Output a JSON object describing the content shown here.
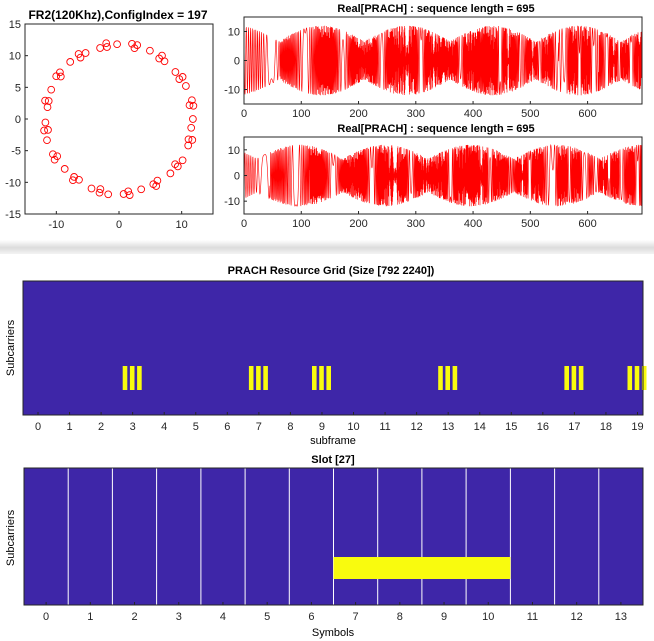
{
  "chart_data": [
    {
      "id": "constellation",
      "type": "scatter",
      "title": "FR2(120Khz),ConfigIndex = 197",
      "xlabel": "",
      "ylabel": "",
      "xlim": [
        -15,
        15
      ],
      "ylim": [
        -15,
        15
      ],
      "xticks": [
        "-10",
        "0",
        "10"
      ],
      "yticks": [
        "15",
        "10",
        "5",
        "0",
        "-5",
        "-10",
        "-15"
      ],
      "marker": "circle",
      "color": "#ff0000",
      "radius": 11.8,
      "num_points": 60
    },
    {
      "id": "real-prach-1",
      "type": "line",
      "title": "Real[PRACH] : sequence length = 695",
      "xlim": [
        0,
        695
      ],
      "ylim": [
        -15,
        15
      ],
      "xticks": [
        "0",
        "100",
        "200",
        "300",
        "400",
        "500",
        "600"
      ],
      "yticks": [
        "10",
        "0",
        "-10"
      ],
      "color": "#ff0000",
      "amplitude": 12
    },
    {
      "id": "real-prach-2",
      "type": "line",
      "title": "Real[PRACH] : sequence length = 695",
      "xlim": [
        0,
        695
      ],
      "ylim": [
        -15,
        15
      ],
      "xticks": [
        "0",
        "100",
        "200",
        "300",
        "400",
        "500",
        "600"
      ],
      "yticks": [
        "10",
        "0",
        "-10"
      ],
      "color": "#ff0000",
      "amplitude": 12
    },
    {
      "id": "resource-grid",
      "type": "heatmap",
      "title": "PRACH Resource Grid (Size [792 2240])",
      "xlabel": "subframe",
      "ylabel": "Subcarriers",
      "xticks": [
        "0",
        "1",
        "2",
        "3",
        "4",
        "5",
        "6",
        "7",
        "8",
        "9",
        "10",
        "11",
        "12",
        "13",
        "14",
        "15",
        "16",
        "17",
        "18",
        "19"
      ],
      "background_color": "#3e26a8",
      "active_color": "#f9fb0e",
      "active_subframes": [
        3,
        7,
        9,
        13,
        17,
        19
      ],
      "bars_per_block": 3
    },
    {
      "id": "slot-grid",
      "type": "heatmap",
      "title": "Slot [27]",
      "xlabel": "Symbols",
      "ylabel": "Subcarriers",
      "xticks": [
        "0",
        "1",
        "2",
        "3",
        "4",
        "5",
        "6",
        "7",
        "8",
        "9",
        "10",
        "11",
        "12",
        "13"
      ],
      "background_color": "#3e26a8",
      "active_color": "#f9fb0e",
      "active_symbols": [
        7,
        11
      ]
    }
  ]
}
